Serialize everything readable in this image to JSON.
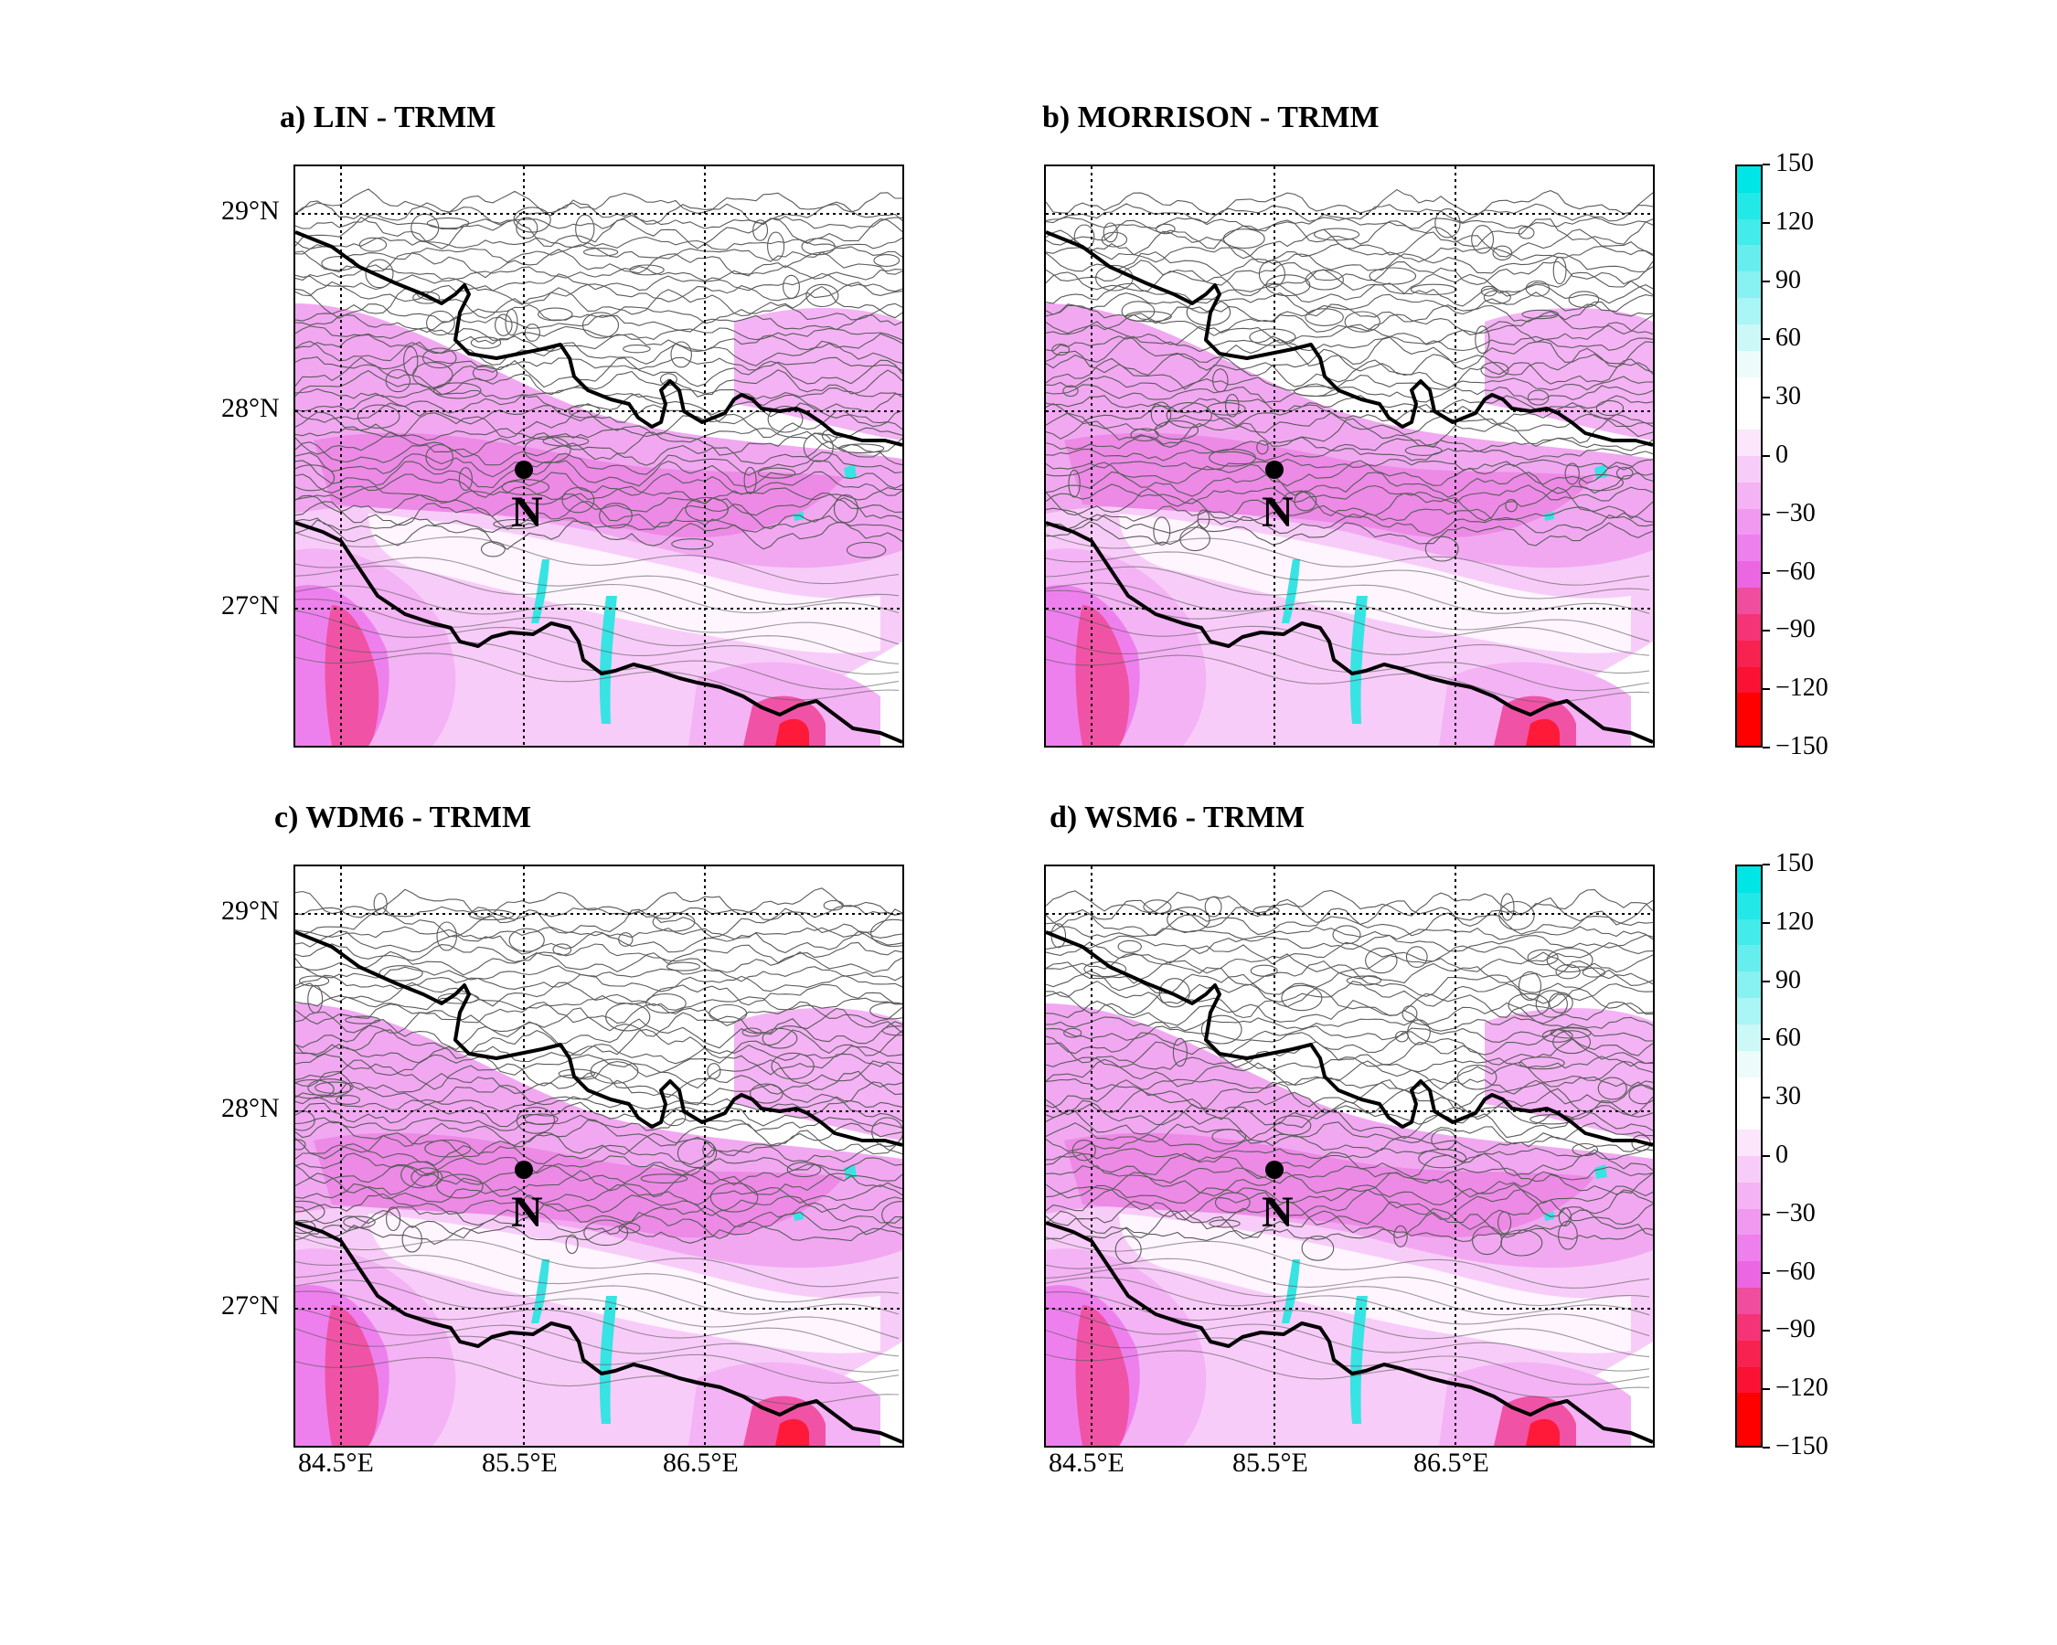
{
  "panels": [
    {
      "id": "a",
      "title": "a) LIN - TRMM",
      "show_y_labels": true,
      "show_x_labels": false
    },
    {
      "id": "b",
      "title": "b) MORRISON - TRMM",
      "show_y_labels": false,
      "show_x_labels": false
    },
    {
      "id": "c",
      "title": "c) WDM6 - TRMM",
      "show_y_labels": true,
      "show_x_labels": true
    },
    {
      "id": "d",
      "title": "d) WSM6 - TRMM",
      "show_y_labels": false,
      "show_x_labels": true
    }
  ],
  "lat_labels": [
    "29°N",
    "28°N",
    "27°N"
  ],
  "lon_labels": [
    "84.5°E",
    "85.5°E",
    "86.5°E"
  ],
  "station": {
    "label": "N"
  },
  "colorbar": {
    "ticks": [
      "150",
      "120",
      "90",
      "60",
      "30",
      "0",
      "−30",
      "−60",
      "−90",
      "−120",
      "−150"
    ],
    "range": [
      -150,
      150
    ],
    "colors_top_to_bottom": [
      "#00e5e5",
      "#22e8e8",
      "#44ebeb",
      "#66eeee",
      "#88f1f1",
      "#aaf5f5",
      "#ccf8f8",
      "#eefbfb",
      "#ffffff",
      "#ffffff",
      "#fbe6fb",
      "#f8ccf8",
      "#f4b3f4",
      "#f199f1",
      "#ee80ee",
      "#eb66e3",
      "#f04d9f",
      "#f53377",
      "#f7224f",
      "#fa1133",
      "#ff0000",
      "#ff0000"
    ],
    "colors": {
      "positive": "#00e5e5",
      "negative": "#ff0000",
      "neutral": "#ffffff"
    }
  }
}
